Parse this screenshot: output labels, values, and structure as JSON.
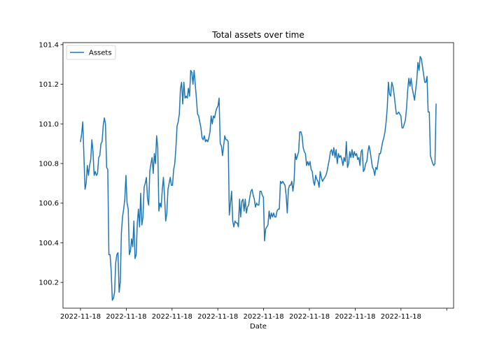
{
  "chart_data": {
    "type": "line",
    "title": "Total assets over time",
    "xlabel": "Date",
    "ylabel": "",
    "ylim": [
      100.07,
      101.41
    ],
    "y_ticks": [
      100.2,
      100.4,
      100.6,
      100.8,
      101.0,
      101.2,
      101.4
    ],
    "x_tick_labels": [
      "2022-11-18",
      "2022-11-18",
      "2022-11-18",
      "2022-11-18",
      "2022-11-18",
      "2022-11-18",
      "2022-11-18",
      "2022-11-18",
      ""
    ],
    "legend_position": "top-left",
    "grid": false,
    "series": [
      {
        "name": "Assets",
        "color": "#1f77b4",
        "values": [
          100.91,
          100.95,
          101.01,
          100.84,
          100.67,
          100.7,
          100.79,
          100.74,
          100.79,
          100.82,
          100.92,
          100.86,
          100.74,
          100.76,
          100.74,
          100.75,
          100.83,
          100.84,
          100.9,
          100.91,
          100.99,
          101.03,
          101.0,
          100.78,
          100.77,
          100.34,
          100.34,
          100.26,
          100.11,
          100.12,
          100.15,
          100.3,
          100.34,
          100.35,
          100.15,
          100.2,
          100.45,
          100.53,
          100.57,
          100.62,
          100.74,
          100.6,
          100.57,
          100.34,
          100.36,
          100.42,
          100.38,
          100.51,
          100.32,
          100.34,
          100.5,
          100.57,
          100.48,
          100.65,
          100.49,
          100.53,
          100.68,
          100.7,
          100.73,
          100.62,
          100.59,
          100.76,
          100.8,
          100.83,
          100.75,
          100.85,
          100.8,
          100.94,
          100.88,
          100.56,
          100.6,
          100.58,
          100.67,
          100.73,
          100.63,
          100.51,
          100.55,
          100.67,
          100.7,
          100.73,
          100.69,
          100.69,
          100.77,
          100.8,
          100.88,
          100.99,
          101.01,
          101.05,
          101.18,
          101.21,
          101.1,
          101.21,
          101.13,
          101.14,
          101.13,
          101.18,
          101.14,
          101.27,
          101.26,
          101.2,
          101.27,
          101.2,
          101.13,
          101.05,
          101.04,
          101.01,
          100.98,
          100.93,
          100.92,
          100.94,
          100.91,
          100.92,
          100.91,
          100.93,
          100.96,
          101.04,
          101.0,
          101.04,
          101.03,
          101.06,
          101.08,
          101.09,
          101.13,
          100.9,
          100.89,
          100.84,
          100.89,
          100.94,
          100.92,
          100.92,
          100.91,
          100.54,
          100.6,
          100.66,
          100.51,
          100.48,
          100.51,
          100.5,
          100.5,
          100.48,
          100.62,
          100.53,
          100.61,
          100.62,
          100.56,
          100.62,
          100.55,
          100.58,
          100.59,
          100.63,
          100.66,
          100.67,
          100.64,
          100.62,
          100.58,
          100.6,
          100.59,
          100.59,
          100.66,
          100.66,
          100.64,
          100.63,
          100.41,
          100.47,
          100.48,
          100.49,
          100.56,
          100.52,
          100.55,
          100.53,
          100.55,
          100.53,
          100.53,
          100.56,
          100.57,
          100.57,
          100.71,
          100.7,
          100.71,
          100.7,
          100.69,
          100.64,
          100.55,
          100.67,
          100.69,
          100.69,
          100.71,
          100.66,
          100.71,
          100.85,
          100.82,
          100.84,
          100.86,
          100.96,
          100.96,
          100.94,
          100.88,
          100.86,
          100.85,
          100.79,
          100.81,
          100.79,
          100.81,
          100.77,
          100.76,
          100.71,
          100.69,
          100.74,
          100.72,
          100.71,
          100.68,
          100.76,
          100.73,
          100.71,
          100.72,
          100.73,
          100.74,
          100.76,
          100.79,
          100.82,
          100.86,
          100.87,
          100.84,
          100.88,
          100.83,
          100.87,
          100.8,
          100.85,
          100.83,
          100.84,
          100.82,
          100.79,
          100.83,
          100.81,
          100.91,
          100.78,
          100.8,
          100.86,
          100.83,
          100.87,
          100.83,
          100.86,
          100.84,
          100.85,
          100.82,
          100.83,
          100.79,
          100.86,
          100.87,
          100.76,
          100.77,
          100.8,
          100.81,
          100.86,
          100.89,
          100.86,
          100.82,
          100.78,
          100.77,
          100.74,
          100.78,
          100.77,
          100.81,
          100.85,
          100.85,
          100.88,
          100.91,
          100.93,
          100.96,
          101.01,
          101.08,
          101.21,
          101.15,
          101.14,
          101.21,
          101.19,
          101.15,
          101.1,
          101.05,
          101.05,
          101.06,
          101.05,
          101.04,
          100.98,
          100.98,
          101.0,
          101.02,
          101.08,
          101.17,
          101.23,
          101.19,
          101.23,
          101.18,
          101.15,
          101.12,
          101.17,
          101.22,
          101.31,
          101.27,
          101.34,
          101.33,
          101.29,
          101.25,
          101.21,
          101.21,
          101.24,
          101.06,
          101.06,
          100.84,
          100.82,
          100.8,
          100.79,
          100.8,
          101.1
        ]
      }
    ]
  }
}
